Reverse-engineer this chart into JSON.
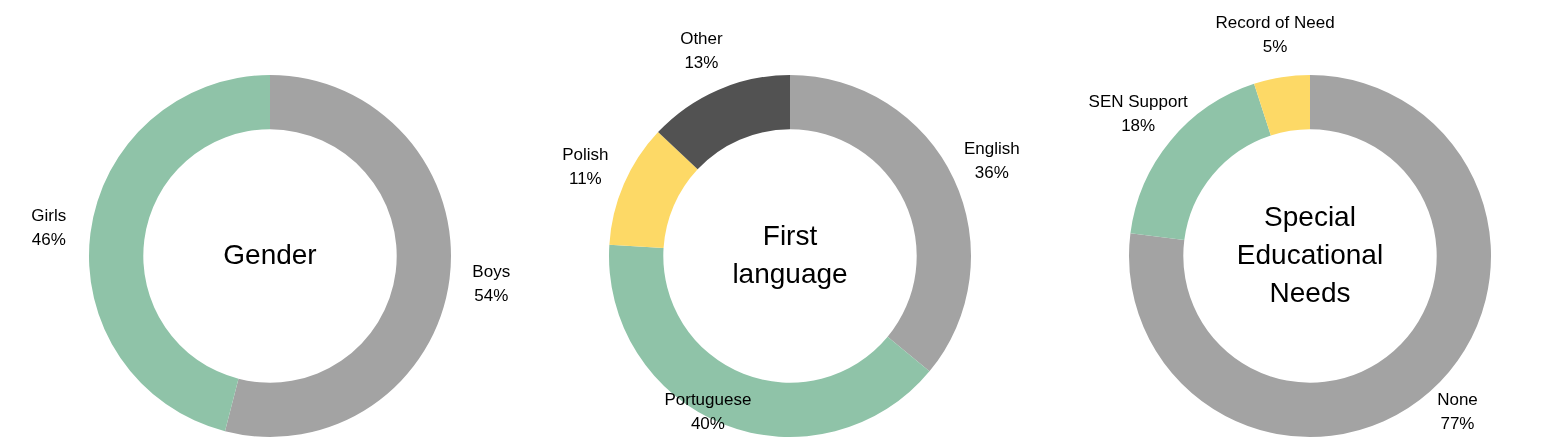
{
  "chart_data": [
    {
      "type": "donut",
      "title": "Gender",
      "categories": [
        "Boys",
        "Girls"
      ],
      "values": [
        54,
        46
      ],
      "colors": [
        "#a3a3a3",
        "#8fc3a8"
      ],
      "value_labels": [
        "54%",
        "46%"
      ]
    },
    {
      "type": "donut",
      "title": "First language",
      "categories": [
        "English",
        "Portuguese",
        "Polish",
        "Other"
      ],
      "values": [
        36,
        40,
        11,
        13
      ],
      "colors": [
        "#a3a3a3",
        "#8fc3a8",
        "#fdd966",
        "#525252"
      ],
      "value_labels": [
        "36%",
        "40%",
        "11%",
        "13%"
      ]
    },
    {
      "type": "donut",
      "title": "Special Educational Needs",
      "categories": [
        "None",
        "SEN Support",
        "Record of Need"
      ],
      "values": [
        77,
        18,
        5
      ],
      "colors": [
        "#a3a3a3",
        "#8fc3a8",
        "#fdd966"
      ],
      "value_labels": [
        "77%",
        "18%",
        "5%"
      ]
    }
  ]
}
